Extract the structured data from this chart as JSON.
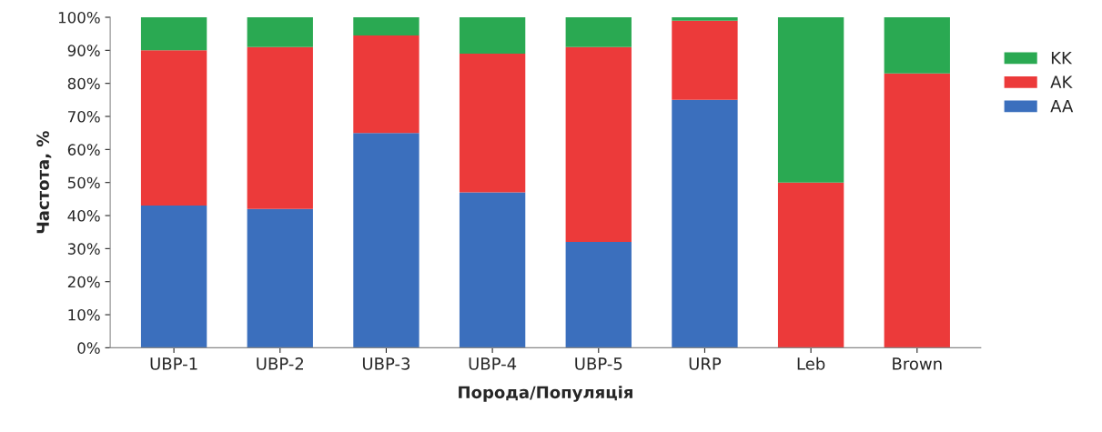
{
  "chart_data": {
    "type": "bar",
    "stacked": true,
    "xlabel": "Порода/Популяція",
    "ylabel": "Частота, %",
    "categories": [
      "UBP-1",
      "UBP-2",
      "UBP-3",
      "UBP-4",
      "UBP-5",
      "URP",
      "Leb",
      "Brown"
    ],
    "series": [
      {
        "name": "AA",
        "color": "#3b6fbd",
        "values": [
          43,
          42,
          65,
          47,
          32,
          75,
          0,
          0
        ]
      },
      {
        "name": "AK",
        "color": "#ec3a3a",
        "values": [
          47,
          49,
          29.5,
          42,
          59,
          24,
          50,
          83
        ]
      },
      {
        "name": "KK",
        "color": "#2aa952",
        "values": [
          10,
          9,
          5.5,
          11,
          9,
          1,
          50,
          17
        ]
      }
    ],
    "ylim": [
      0,
      100
    ],
    "yticks": [
      {
        "value": 0,
        "label": "0%"
      },
      {
        "value": 10,
        "label": "10%"
      },
      {
        "value": 20,
        "label": "20%"
      },
      {
        "value": 30,
        "label": "30%"
      },
      {
        "value": 40,
        "label": "40%"
      },
      {
        "value": 50,
        "label": "50%"
      },
      {
        "value": 60,
        "label": "60%"
      },
      {
        "value": 70,
        "label": "70%"
      },
      {
        "value": 80,
        "label": "80%"
      },
      {
        "value": 90,
        "label": "90%"
      },
      {
        "value": 100,
        "label": "100%"
      }
    ],
    "grid": false,
    "legend": "right"
  }
}
